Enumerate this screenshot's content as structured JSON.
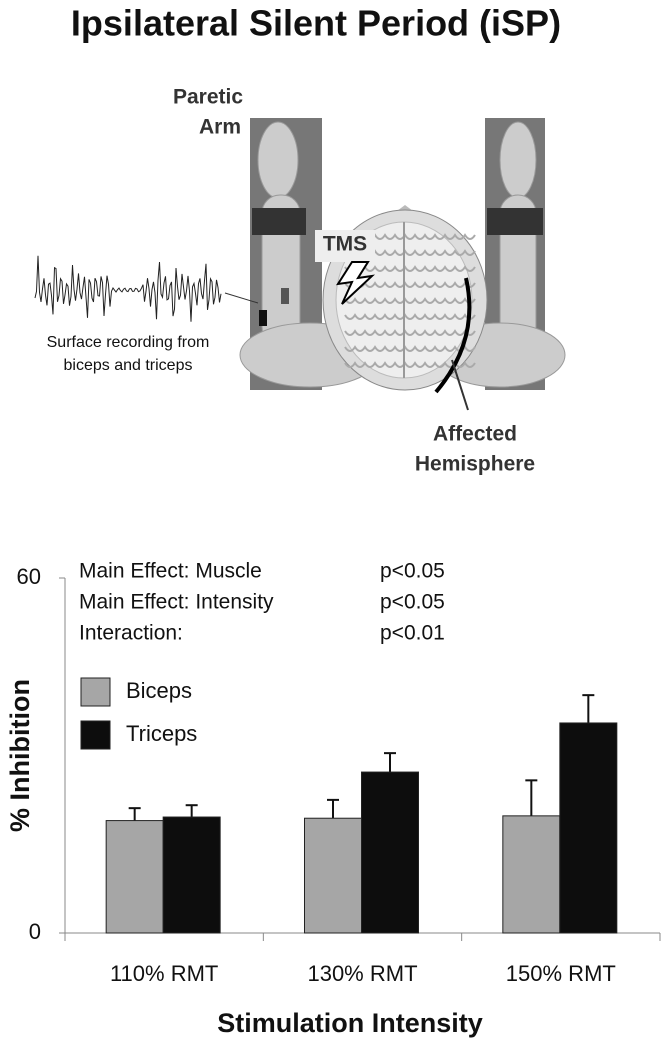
{
  "title": "Ipsilateral Silent Period (iSP)",
  "diagram": {
    "arm_label": [
      "Paretic",
      "Arm"
    ],
    "tms_label": "TMS",
    "recording_label": [
      "Surface recording from",
      "biceps and triceps"
    ],
    "hemisphere_label": [
      "Affected",
      "Hemisphere"
    ]
  },
  "chart_data": {
    "type": "bar",
    "x_label": "Stimulation Intensity",
    "y_label": "% Inhibition",
    "categories": [
      "110% RMT",
      "130% RMT",
      "150% RMT"
    ],
    "series": [
      {
        "name": "Biceps",
        "color": "#a6a6a6",
        "values": [
          19,
          19.4,
          19.8
        ],
        "errors": [
          2.1,
          3.1,
          6
        ]
      },
      {
        "name": "Triceps",
        "color": "#0d0d0d",
        "values": [
          19.6,
          27.2,
          35.5
        ],
        "errors": [
          2,
          3.2,
          4.7
        ]
      }
    ],
    "ylim": [
      0,
      60
    ],
    "yticks": [
      0,
      60
    ],
    "legend": "upper left",
    "annotations": [
      {
        "label": "Main Effect: Muscle",
        "p": "p<0.05"
      },
      {
        "label": "Main Effect: Intensity",
        "p": "p<0.05"
      },
      {
        "label": "Interaction:",
        "p": "p<0.01"
      }
    ]
  }
}
